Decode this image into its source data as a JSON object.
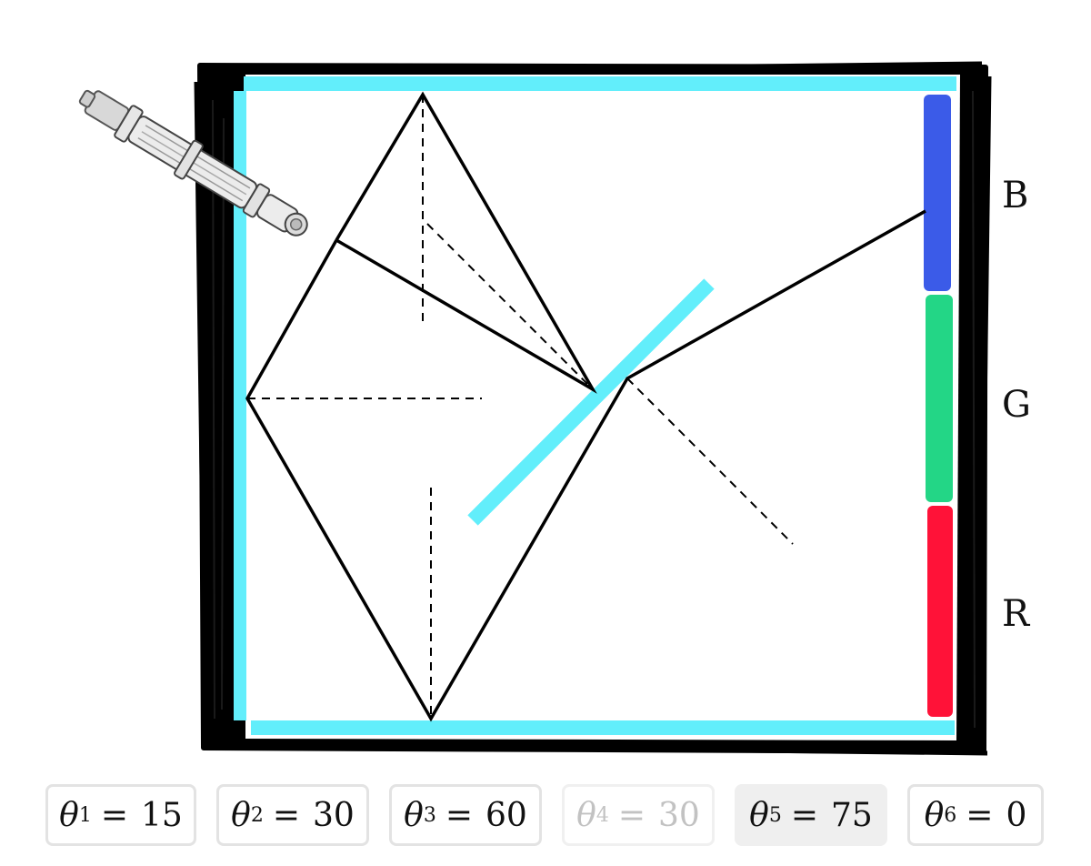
{
  "labels": {
    "B": "B",
    "G": "G",
    "R": "R"
  },
  "colors": {
    "mirror": "#62eefb",
    "frame": "#000000",
    "blue_band": "#3b5be8",
    "green_band": "#23d686",
    "red_band": "#ff1238",
    "ray": "#000000"
  },
  "icons": {
    "laser": "laser-pointer-icon"
  },
  "angles": [
    {
      "symbol": "θ",
      "sub": "1",
      "eq": "=",
      "value": "15",
      "state": "normal"
    },
    {
      "symbol": "θ",
      "sub": "2",
      "eq": "=",
      "value": "30",
      "state": "normal"
    },
    {
      "symbol": "θ",
      "sub": "3",
      "eq": "=",
      "value": "60",
      "state": "normal"
    },
    {
      "symbol": "θ",
      "sub": "4",
      "eq": "=",
      "value": "30",
      "state": "disabled"
    },
    {
      "symbol": "θ",
      "sub": "5",
      "eq": "=",
      "value": "75",
      "state": "active"
    },
    {
      "symbol": "θ",
      "sub": "6",
      "eq": "=",
      "value": "0",
      "state": "normal"
    }
  ]
}
